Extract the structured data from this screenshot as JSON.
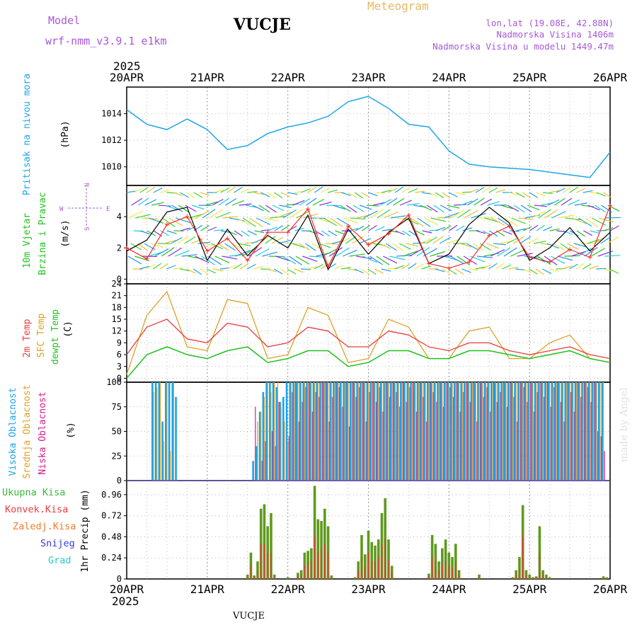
{
  "header": {
    "model_label": "Model",
    "model_name": "wrf-nmm_v3.9.1  e1km",
    "title": "VUCJE",
    "product": "Meteogram",
    "lonlat": "lon,lat (19.08E, 42.88N)",
    "elevation": "Nadmorska Visina 1406m",
    "model_elevation": "Nadmorska Visina u modelu 1449.47m"
  },
  "footer": {
    "station": "VUCJE",
    "credit": "made by Angel"
  },
  "time_axis": {
    "year": "2025",
    "labels": [
      "20APR",
      "21APR",
      "22APR",
      "23APR",
      "24APR",
      "25APR",
      "26APR"
    ]
  },
  "colors": {
    "pressure": "#1ea6e6",
    "wind_speed": "#000000",
    "gust": "#ff2a2a",
    "temp2m": "#e83c3c",
    "sfc_temp": "#dca22a",
    "dewpt": "#1fc21f",
    "cloud_high": "#1aa3ea",
    "cloud_mid": "#dca22a",
    "cloud_low": "#d81b8a",
    "precip_total": "#5f9a1e",
    "precip_conv": "#e83c3c",
    "grid": "#b9b9b9"
  },
  "panels": {
    "pressure": {
      "label": "Pritisak na nivou mora",
      "unit": "(hPa)",
      "ticks": [
        "1010",
        "1012",
        "1014"
      ]
    },
    "wind": {
      "label1": "10m Vjetar",
      "label2": "Brzina i Pravac",
      "unit": "(m/s)",
      "ticks": [
        "0",
        "2",
        "4"
      ],
      "compass_w": "W",
      "compass_e": "E",
      "compass_n": "N",
      "compass_s": "S"
    },
    "temp": {
      "label1": "2m Temp",
      "label2": "SFC Temp",
      "label3": "dewpt Temp",
      "unit": "(C)",
      "ticks": [
        "0",
        "3",
        "6",
        "9",
        "12",
        "15",
        "18",
        "21",
        "24"
      ]
    },
    "cloud": {
      "label1": "Visoka Oblacnost",
      "label2": "Srednja Oblacnost",
      "label3": "Niska Oblacnost",
      "unit": "(%)",
      "ticks": [
        "0",
        "25",
        "50",
        "75",
        "100"
      ]
    },
    "precip": {
      "legend": [
        "Ukupna Kisa",
        "Konvek.Kisa",
        "Zaledj.Kisa",
        "Snijeg",
        "Grad"
      ],
      "legend_colors": [
        "#3cb83c",
        "#e83c3c",
        "#f07a2a",
        "#3a3ae0",
        "#2ac8c8"
      ],
      "unit": "1hr Precip (mm)",
      "ticks": [
        "0",
        "0.24",
        "0.48",
        "0.72",
        "0.96"
      ]
    }
  },
  "chart_data": [
    {
      "type": "line",
      "title": "Pritisak na nivou mora",
      "ylabel": "(hPa)",
      "ylim": [
        1008.6,
        1016.0
      ],
      "x": [
        0,
        6,
        12,
        18,
        24,
        30,
        36,
        42,
        48,
        54,
        60,
        66,
        72,
        78,
        84,
        90,
        96,
        102,
        108,
        114,
        120,
        126,
        132,
        138,
        144
      ],
      "series": [
        {
          "name": "Pritisak na nivou mora",
          "values": [
            1014.3,
            1013.2,
            1012.8,
            1013.6,
            1012.8,
            1011.3,
            1011.6,
            1012.5,
            1013.0,
            1013.3,
            1013.8,
            1014.9,
            1015.3,
            1014.4,
            1013.2,
            1013.0,
            1011.2,
            1010.2,
            1010.0,
            1009.9,
            1009.8,
            1009.6,
            1009.4,
            1009.2,
            1011.1
          ]
        }
      ],
      "grid": true
    },
    {
      "type": "line",
      "title": "10m Vjetar Brzina i Pravac",
      "ylabel": "(m/s)",
      "ylim": [
        -0.3,
        6.0
      ],
      "x": [
        0,
        6,
        12,
        18,
        24,
        30,
        36,
        42,
        48,
        54,
        60,
        66,
        72,
        78,
        84,
        90,
        96,
        102,
        108,
        114,
        120,
        126,
        132,
        138,
        144
      ],
      "series": [
        {
          "values": [
            1.8,
            2.5,
            4.3,
            4.6,
            1.2,
            3.2,
            1.5,
            2.8,
            2.0,
            4.1,
            0.6,
            3.2,
            1.6,
            3.0,
            3.9,
            1.0,
            1.6,
            3.5,
            4.6,
            3.6,
            1.2,
            2.0,
            3.3,
            1.8,
            3.0
          ]
        },
        {
          "values": [
            2.0,
            1.3,
            3.5,
            4.0,
            1.8,
            2.6,
            1.2,
            3.0,
            3.0,
            4.5,
            0.8,
            3.4,
            2.2,
            2.9,
            4.1,
            1.0,
            0.7,
            1.1,
            2.8,
            3.4,
            1.4,
            1.1,
            1.9,
            1.4,
            4.7
          ]
        }
      ],
      "grid": true
    },
    {
      "type": "line",
      "title": "2m Temp / SFC Temp / dewpt Temp",
      "ylabel": "(C)",
      "ylim": [
        -1,
        24
      ],
      "x": [
        0,
        6,
        12,
        18,
        24,
        30,
        36,
        42,
        48,
        54,
        60,
        66,
        72,
        78,
        84,
        90,
        96,
        102,
        108,
        114,
        120,
        126,
        132,
        138,
        144
      ],
      "series": [
        {
          "name": "2m Temp",
          "values": [
            6,
            13,
            15,
            10,
            9,
            14,
            13,
            8,
            9,
            13,
            12,
            8,
            8,
            12,
            11,
            8,
            7,
            9,
            9,
            7,
            6,
            7,
            8,
            6,
            5
          ]
        },
        {
          "name": "SFC Temp",
          "values": [
            1,
            16,
            22,
            8,
            7,
            20,
            19,
            5,
            6,
            18,
            16,
            4,
            5,
            15,
            13,
            5,
            5,
            12,
            13,
            5,
            5,
            9,
            11,
            5,
            4
          ]
        },
        {
          "name": "dewpt Temp",
          "values": [
            0,
            6,
            8,
            6,
            5,
            7,
            8,
            4,
            5,
            7,
            7,
            3,
            4,
            7,
            7,
            5,
            5,
            7,
            7,
            6,
            5,
            6,
            7,
            5,
            4
          ]
        }
      ],
      "grid": true
    },
    {
      "type": "bar",
      "title": "Oblacnost",
      "ylabel": "(%)",
      "ylim": [
        0,
        100
      ],
      "x": [
        8,
        9,
        10,
        11,
        12,
        13,
        14,
        15,
        16,
        17,
        18,
        38,
        39,
        40,
        41,
        42,
        43,
        44,
        45,
        46,
        47,
        48,
        49,
        50,
        51,
        52,
        53,
        54,
        55,
        56,
        57,
        58,
        59,
        60,
        61,
        62,
        63,
        64,
        65,
        66,
        67,
        68,
        69,
        70,
        71,
        72,
        73,
        74,
        75,
        76,
        77,
        78,
        79,
        80,
        81,
        82,
        83,
        84,
        85,
        86,
        87,
        88,
        89,
        90,
        91,
        92,
        93,
        94,
        95,
        96,
        97,
        98,
        99,
        100,
        101,
        102,
        103,
        104,
        105,
        106,
        107,
        108,
        109,
        110,
        111,
        112,
        113,
        114,
        115,
        116,
        117,
        118,
        119,
        120,
        121,
        122,
        123,
        124,
        125,
        126,
        127,
        128,
        129,
        130,
        131,
        132,
        133,
        134,
        135,
        136,
        137,
        138,
        139,
        140,
        141,
        142
      ],
      "series": [
        {
          "name": "Visoka Oblacnost",
          "values": [
            100,
            100,
            100,
            60,
            100,
            100,
            100,
            85,
            0,
            0,
            0,
            20,
            35,
            70,
            90,
            100,
            100,
            100,
            95,
            80,
            85,
            100,
            100,
            100,
            100,
            100,
            100,
            100,
            100,
            100,
            100,
            100,
            100,
            100,
            100,
            100,
            100,
            100,
            100,
            100,
            100,
            100,
            100,
            100,
            100,
            100,
            100,
            100,
            100,
            100,
            100,
            100,
            100,
            100,
            100,
            100,
            100,
            100,
            100,
            100,
            100,
            100,
            100,
            100,
            100,
            100,
            100,
            100,
            100,
            100,
            100,
            100,
            100,
            100,
            100,
            100,
            100,
            100,
            100,
            100,
            100,
            100,
            100,
            100,
            100,
            100,
            100,
            100,
            100,
            100,
            100,
            100,
            100,
            100,
            100,
            100,
            100,
            100,
            100,
            100,
            100,
            100,
            100,
            100,
            100,
            100,
            100,
            100,
            100,
            100,
            100,
            100,
            100,
            100,
            100,
            100
          ]
        },
        {
          "name": "Srednja Oblacnost",
          "values": [
            90,
            95,
            100,
            40,
            100,
            30,
            100,
            0,
            0,
            0,
            0,
            0,
            60,
            70,
            85,
            100,
            90,
            100,
            100,
            75,
            60,
            40,
            100,
            100,
            100,
            100,
            100,
            100,
            100,
            100,
            100,
            100,
            100,
            100,
            100,
            100,
            100,
            100,
            100,
            100,
            100,
            100,
            100,
            100,
            100,
            100,
            100,
            100,
            100,
            100,
            100,
            100,
            100,
            100,
            100,
            100,
            100,
            100,
            100,
            100,
            100,
            100,
            100,
            100,
            100,
            100,
            100,
            100,
            100,
            100,
            100,
            100,
            100,
            100,
            100,
            100,
            100,
            100,
            100,
            100,
            100,
            100,
            100,
            100,
            100,
            100,
            100,
            100,
            100,
            100,
            100,
            100,
            100,
            100,
            100,
            100,
            100,
            100,
            100,
            100,
            100,
            100,
            100,
            100,
            100,
            100,
            100,
            100,
            100,
            100,
            100,
            100,
            100,
            100,
            100,
            100
          ]
        },
        {
          "name": "Niska Oblacnost",
          "values": [
            0,
            0,
            0,
            0,
            0,
            0,
            0,
            0,
            0,
            0,
            0,
            75,
            0,
            20,
            40,
            0,
            50,
            35,
            80,
            0,
            0,
            45,
            90,
            100,
            60,
            80,
            95,
            100,
            70,
            90,
            85,
            100,
            100,
            60,
            85,
            100,
            95,
            75,
            100,
            55,
            100,
            85,
            95,
            100,
            60,
            90,
            100,
            80,
            95,
            70,
            100,
            85,
            100,
            90,
            75,
            100,
            80,
            95,
            100,
            70,
            100,
            85,
            60,
            100,
            90,
            80,
            100,
            75,
            100,
            95,
            85,
            100,
            70,
            90,
            100,
            80,
            100,
            60,
            100,
            85,
            95,
            70,
            100,
            80,
            90,
            100,
            75,
            100,
            85,
            60,
            100,
            95,
            80,
            100,
            70,
            90,
            100,
            85,
            100,
            75,
            95,
            100,
            80,
            60,
            100,
            90,
            70,
            100,
            85,
            100,
            95,
            80,
            100,
            50,
            45,
            30
          ]
        }
      ],
      "grid": true
    },
    {
      "type": "bar",
      "title": "1hr Precip",
      "ylabel": "1hr Precip (mm)",
      "ylim": [
        0,
        1.12
      ],
      "x": [
        36,
        37,
        38,
        39,
        40,
        41,
        42,
        43,
        44,
        45,
        46,
        47,
        48,
        49,
        50,
        51,
        52,
        53,
        54,
        55,
        56,
        57,
        58,
        59,
        60,
        61,
        62,
        63,
        64,
        65,
        66,
        67,
        68,
        69,
        70,
        71,
        72,
        73,
        74,
        75,
        76,
        77,
        78,
        79,
        80,
        81,
        82,
        83,
        84,
        85,
        86,
        87,
        88,
        89,
        90,
        91,
        92,
        93,
        94,
        95,
        96,
        97,
        98,
        99,
        100,
        101,
        102,
        103,
        104,
        105,
        106,
        107,
        108,
        109,
        110,
        111,
        112,
        113,
        114,
        115,
        116,
        117,
        118,
        119,
        120,
        121,
        122,
        123,
        124,
        125,
        126,
        127,
        128,
        129,
        130,
        131,
        132,
        133,
        134,
        135,
        136,
        137,
        138,
        139,
        140,
        141,
        142,
        143
      ],
      "series": [
        {
          "name": "Ukupna Kisa",
          "values": [
            0.05,
            0.3,
            0.04,
            0.2,
            0.8,
            0.85,
            0.6,
            0.75,
            0.05,
            0,
            0,
            0,
            0.02,
            0,
            0,
            0.07,
            0.1,
            0.3,
            0.32,
            0.35,
            1.06,
            0.68,
            0.66,
            0.8,
            0.6,
            0.04,
            0,
            0,
            0,
            0,
            0,
            0,
            0.02,
            0.2,
            0.5,
            0.28,
            0.55,
            0.42,
            0.38,
            0.45,
            0.75,
            0.92,
            0.45,
            0.15,
            0,
            0,
            0,
            0,
            0,
            0,
            0,
            0,
            0,
            0,
            0.06,
            0.5,
            0.4,
            0.2,
            0.35,
            0.45,
            0.3,
            0.25,
            0.4,
            0.1,
            0,
            0,
            0,
            0,
            0,
            0.05,
            0,
            0,
            0,
            0,
            0,
            0,
            0,
            0,
            0,
            0.02,
            0.1,
            0.25,
            0.84,
            0.1,
            0.05,
            0.02,
            0.03,
            0.6,
            0.1,
            0.05,
            0.02,
            0,
            0,
            0,
            0,
            0,
            0,
            0,
            0,
            0,
            0,
            0,
            0,
            0,
            0,
            0,
            0.03,
            0.02
          ]
        },
        {
          "name": "Konvek.Kisa",
          "values": [
            0.02,
            0.15,
            0.02,
            0.1,
            0.4,
            0.4,
            0.3,
            0.3,
            0.02,
            0,
            0,
            0,
            0.01,
            0,
            0,
            0.03,
            0.05,
            0.15,
            0.2,
            0.2,
            0.5,
            0.3,
            0.35,
            0.4,
            0.3,
            0.02,
            0,
            0,
            0,
            0,
            0,
            0,
            0.01,
            0.1,
            0.25,
            0.14,
            0.3,
            0.2,
            0.2,
            0.25,
            0.4,
            0.45,
            0.22,
            0.08,
            0,
            0,
            0,
            0,
            0,
            0,
            0,
            0,
            0,
            0,
            0.03,
            0.25,
            0.2,
            0.1,
            0.18,
            0.22,
            0.15,
            0.12,
            0.2,
            0.05,
            0,
            0,
            0,
            0,
            0,
            0.02,
            0,
            0,
            0,
            0,
            0,
            0,
            0,
            0,
            0,
            0.01,
            0.05,
            0.12,
            0.5,
            0.05,
            0.02,
            0.01,
            0.02,
            0.3,
            0.05,
            0.02,
            0.01,
            0,
            0,
            0,
            0,
            0,
            0,
            0,
            0,
            0,
            0,
            0,
            0,
            0,
            0,
            0,
            0.02,
            0.01
          ]
        }
      ],
      "grid": true
    }
  ]
}
